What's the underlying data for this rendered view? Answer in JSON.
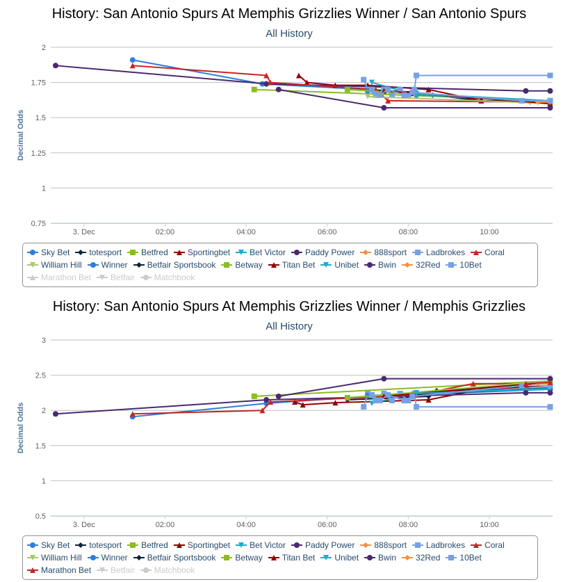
{
  "charts": [
    {
      "title": "History: San Antonio Spurs At Memphis Grizzlies Winner / San Antonio Spurs",
      "subtitle": "All History",
      "chart_data": {
        "type": "line",
        "title": "History: San Antonio Spurs At Memphis Grizzlies Winner / San Antonio Spurs",
        "subtitle": "All History",
        "xlabel": "",
        "ylabel": "Decimal Odds",
        "x_unit": "hours since 3 Dec 00:00",
        "xlim": [
          -0.82,
          11.56
        ],
        "x_ticks": [
          {
            "v": 0,
            "label": "3. Dec"
          },
          {
            "v": 2,
            "label": "02:00"
          },
          {
            "v": 4,
            "label": "04:00"
          },
          {
            "v": 6,
            "label": "06:00"
          },
          {
            "v": 8,
            "label": "08:00"
          },
          {
            "v": 10,
            "label": "10:00"
          }
        ],
        "ylim": [
          0.75,
          2
        ],
        "y_ticks": [
          "0.75",
          "1",
          "1.25",
          "1.5",
          "1.75",
          "2"
        ],
        "grid": true,
        "legend": "bottom",
        "series": [
          {
            "name": "Sky Bet",
            "color": "#2f7ed8",
            "marker": "circle",
            "points": [
              [
                1.2,
                1.91
              ],
              [
                4.4,
                1.74
              ],
              [
                7.0,
                1.7
              ],
              [
                8.2,
                1.66
              ],
              [
                11.5,
                1.62
              ]
            ]
          },
          {
            "name": "totesport",
            "color": "#0d233a",
            "marker": "diamond",
            "points": [
              [
                7.0,
                1.7
              ],
              [
                8.2,
                1.68
              ],
              [
                8.6,
                1.66
              ],
              [
                9.8,
                1.62
              ],
              [
                11.5,
                1.62
              ]
            ]
          },
          {
            "name": "Betfred",
            "color": "#8bbc21",
            "marker": "square",
            "points": [
              [
                4.2,
                1.7
              ],
              [
                11.5,
                1.62
              ]
            ]
          },
          {
            "name": "Sportingbet",
            "color": "#910000",
            "marker": "triangle",
            "points": [
              [
                5.3,
                1.8
              ],
              [
                5.5,
                1.75
              ],
              [
                6.2,
                1.73
              ],
              [
                7.0,
                1.73
              ],
              [
                8.5,
                1.7
              ],
              [
                9.8,
                1.62
              ],
              [
                11.5,
                1.6
              ]
            ]
          },
          {
            "name": "Bet Victor",
            "color": "#1aadce",
            "marker": "triangle-down",
            "points": [
              [
                7.1,
                1.75
              ],
              [
                8.2,
                1.66
              ],
              [
                11.5,
                1.62
              ]
            ]
          },
          {
            "name": "Paddy Power",
            "color": "#492970",
            "marker": "circle",
            "points": [
              [
                -0.7,
                1.87
              ],
              [
                4.5,
                1.74
              ],
              [
                10.9,
                1.69
              ],
              [
                11.5,
                1.69
              ]
            ]
          },
          {
            "name": "888sport",
            "color": "#f28f43",
            "marker": "diamond",
            "points": [
              [
                11.0,
                1.61
              ],
              [
                11.5,
                1.61
              ]
            ]
          },
          {
            "name": "Ladbrokes",
            "color": "#77a1e5",
            "marker": "square",
            "points": [
              [
                6.9,
                1.77
              ],
              [
                7.0,
                1.7
              ],
              [
                7.2,
                1.66
              ],
              [
                7.4,
                1.7
              ],
              [
                7.6,
                1.66
              ],
              [
                7.8,
                1.7
              ],
              [
                8.0,
                1.66
              ],
              [
                8.15,
                1.7
              ],
              [
                8.2,
                1.8
              ],
              [
                11.5,
                1.8
              ]
            ]
          },
          {
            "name": "Coral",
            "color": "#c42525",
            "marker": "triangle",
            "points": [
              [
                1.2,
                1.87
              ],
              [
                4.5,
                1.8
              ],
              [
                4.6,
                1.75
              ],
              [
                7.2,
                1.7
              ],
              [
                7.5,
                1.62
              ],
              [
                11.5,
                1.61
              ]
            ]
          },
          {
            "name": "William Hill",
            "color": "#a6c96a",
            "marker": "triangle-down",
            "points": [
              [
                7.0,
                1.65
              ],
              [
                11.5,
                1.6
              ]
            ]
          },
          {
            "name": "Winner",
            "color": "#2f7ed8",
            "marker": "circle",
            "points": [
              [
                7.0,
                1.69
              ],
              [
                11.5,
                1.61
              ]
            ]
          },
          {
            "name": "Betfair Sportsbook",
            "color": "#0d233a",
            "marker": "diamond",
            "points": [
              [
                8.1,
                1.67
              ],
              [
                11.5,
                1.61
              ]
            ]
          },
          {
            "name": "Betway",
            "color": "#8bbc21",
            "marker": "square",
            "points": [
              [
                6.5,
                1.7
              ],
              [
                11.5,
                1.61
              ]
            ]
          },
          {
            "name": "Titan Bet",
            "color": "#910000",
            "marker": "triangle",
            "points": [
              [
                7.4,
                1.69
              ],
              [
                11.5,
                1.6
              ]
            ]
          },
          {
            "name": "Unibet",
            "color": "#1aadce",
            "marker": "triangle-down",
            "points": [
              [
                8.2,
                1.67
              ],
              [
                11.5,
                1.62
              ]
            ]
          },
          {
            "name": "Bwin",
            "color": "#492970",
            "marker": "circle",
            "points": [
              [
                4.8,
                1.7
              ],
              [
                7.4,
                1.57
              ],
              [
                11.5,
                1.57
              ]
            ]
          },
          {
            "name": "32Red",
            "color": "#f28f43",
            "marker": "diamond",
            "points": [
              [
                11.2,
                1.61
              ],
              [
                11.5,
                1.61
              ]
            ]
          },
          {
            "name": "10Bet",
            "color": "#77a1e5",
            "marker": "square",
            "points": [
              [
                7.1,
                1.7
              ],
              [
                7.3,
                1.66
              ],
              [
                7.5,
                1.7
              ],
              [
                7.9,
                1.66
              ],
              [
                8.1,
                1.68
              ],
              [
                10.8,
                1.62
              ],
              [
                11.5,
                1.62
              ]
            ]
          },
          {
            "name": "Marathon Bet",
            "color": "#c42525",
            "marker": "triangle",
            "hidden": true,
            "points": []
          },
          {
            "name": "Betfair",
            "color": "#a6c96a",
            "marker": "triangle-down",
            "hidden": true,
            "points": []
          },
          {
            "name": "Matchbook",
            "color": "#2f7ed8",
            "marker": "circle",
            "hidden": true,
            "points": []
          }
        ]
      }
    },
    {
      "title": "History: San Antonio Spurs At Memphis Grizzlies Winner / Memphis Grizzlies",
      "subtitle": "All History",
      "chart_data": {
        "type": "line",
        "title": "History: San Antonio Spurs At Memphis Grizzlies Winner / Memphis Grizzlies",
        "subtitle": "All History",
        "xlabel": "",
        "ylabel": "Decimal Odds",
        "x_unit": "hours since 3 Dec 00:00",
        "xlim": [
          -0.82,
          11.56
        ],
        "x_ticks": [
          {
            "v": 0,
            "label": "3. Dec"
          },
          {
            "v": 2,
            "label": "02:00"
          },
          {
            "v": 4,
            "label": "04:00"
          },
          {
            "v": 6,
            "label": "06:00"
          },
          {
            "v": 8,
            "label": "08:00"
          },
          {
            "v": 10,
            "label": "10:00"
          }
        ],
        "ylim": [
          0.5,
          3
        ],
        "y_ticks": [
          "0.5",
          "1",
          "1.5",
          "2",
          "2.5",
          "3"
        ],
        "grid": true,
        "legend": "bottom",
        "series": [
          {
            "name": "Sky Bet",
            "color": "#2f7ed8",
            "marker": "circle",
            "points": [
              [
                1.2,
                1.91
              ],
              [
                4.5,
                2.1
              ],
              [
                7.0,
                2.2
              ],
              [
                11.5,
                2.3
              ]
            ]
          },
          {
            "name": "totesport",
            "color": "#0d233a",
            "marker": "diamond",
            "points": [
              [
                6.5,
                2.15
              ],
              [
                8.5,
                2.2
              ],
              [
                8.7,
                2.28
              ],
              [
                11.5,
                2.3
              ]
            ]
          },
          {
            "name": "Betfred",
            "color": "#8bbc21",
            "marker": "square",
            "points": [
              [
                4.2,
                2.2
              ],
              [
                11.5,
                2.42
              ]
            ]
          },
          {
            "name": "Sportingbet",
            "color": "#910000",
            "marker": "triangle",
            "points": [
              [
                5.2,
                2.12
              ],
              [
                5.4,
                2.08
              ],
              [
                6.2,
                2.11
              ],
              [
                8.0,
                2.14
              ],
              [
                8.5,
                2.15
              ],
              [
                9.8,
                2.3
              ],
              [
                11.5,
                2.35
              ]
            ]
          },
          {
            "name": "Bet Victor",
            "color": "#1aadce",
            "marker": "triangle-down",
            "points": [
              [
                7.1,
                2.1
              ],
              [
                8.2,
                2.25
              ],
              [
                11.5,
                2.3
              ]
            ]
          },
          {
            "name": "Paddy Power",
            "color": "#492970",
            "marker": "circle",
            "points": [
              [
                -0.7,
                1.95
              ],
              [
                4.5,
                2.15
              ],
              [
                10.9,
                2.25
              ],
              [
                11.5,
                2.25
              ]
            ]
          },
          {
            "name": "888sport",
            "color": "#f28f43",
            "marker": "diamond",
            "points": [
              [
                11.0,
                2.38
              ],
              [
                11.5,
                2.38
              ]
            ]
          },
          {
            "name": "Ladbrokes",
            "color": "#77a1e5",
            "marker": "square",
            "points": [
              [
                6.9,
                2.05
              ],
              [
                7.0,
                2.24
              ],
              [
                7.2,
                2.14
              ],
              [
                7.4,
                2.24
              ],
              [
                7.6,
                2.14
              ],
              [
                7.8,
                2.24
              ],
              [
                8.0,
                2.14
              ],
              [
                8.15,
                2.24
              ],
              [
                8.2,
                2.05
              ],
              [
                11.5,
                2.05
              ]
            ]
          },
          {
            "name": "Coral",
            "color": "#c42525",
            "marker": "triangle",
            "points": [
              [
                1.2,
                1.95
              ],
              [
                4.4,
                2.0
              ],
              [
                4.6,
                2.12
              ],
              [
                8.2,
                2.22
              ],
              [
                9.6,
                2.38
              ],
              [
                11.5,
                2.38
              ]
            ]
          },
          {
            "name": "William Hill",
            "color": "#a6c96a",
            "marker": "triangle-down",
            "points": [
              [
                7.0,
                2.2
              ],
              [
                11.5,
                2.42
              ]
            ]
          },
          {
            "name": "Winner",
            "color": "#2f7ed8",
            "marker": "circle",
            "points": [
              [
                7.0,
                2.21
              ],
              [
                11.5,
                2.32
              ]
            ]
          },
          {
            "name": "Betfair Sportsbook",
            "color": "#0d233a",
            "marker": "diamond",
            "points": [
              [
                8.1,
                2.22
              ],
              [
                11.5,
                2.32
              ]
            ]
          },
          {
            "name": "Betway",
            "color": "#8bbc21",
            "marker": "square",
            "points": [
              [
                6.5,
                2.18
              ],
              [
                11.5,
                2.4
              ]
            ]
          },
          {
            "name": "Titan Bet",
            "color": "#910000",
            "marker": "triangle",
            "points": [
              [
                7.4,
                2.2
              ],
              [
                11.5,
                2.4
              ]
            ]
          },
          {
            "name": "Unibet",
            "color": "#1aadce",
            "marker": "triangle-down",
            "points": [
              [
                8.2,
                2.24
              ],
              [
                11.5,
                2.31
              ]
            ]
          },
          {
            "name": "Bwin",
            "color": "#492970",
            "marker": "circle",
            "points": [
              [
                4.8,
                2.2
              ],
              [
                7.4,
                2.45
              ],
              [
                11.5,
                2.45
              ]
            ]
          },
          {
            "name": "32Red",
            "color": "#f28f43",
            "marker": "diamond",
            "points": [
              [
                11.2,
                2.38
              ],
              [
                11.5,
                2.38
              ]
            ]
          },
          {
            "name": "10Bet",
            "color": "#77a1e5",
            "marker": "square",
            "points": [
              [
                7.1,
                2.22
              ],
              [
                7.3,
                2.14
              ],
              [
                7.5,
                2.22
              ],
              [
                7.9,
                2.14
              ],
              [
                8.1,
                2.2
              ],
              [
                10.8,
                2.35
              ],
              [
                11.5,
                2.35
              ]
            ]
          },
          {
            "name": "Marathon Bet",
            "color": "#c42525",
            "marker": "triangle",
            "points": [
              [
                10.9,
                2.38
              ],
              [
                11.5,
                2.4
              ]
            ]
          },
          {
            "name": "Betfair",
            "color": "#a6c96a",
            "marker": "triangle-down",
            "hidden": true,
            "points": []
          },
          {
            "name": "Matchbook",
            "color": "#2f7ed8",
            "marker": "circle",
            "hidden": true,
            "points": []
          }
        ]
      }
    }
  ]
}
